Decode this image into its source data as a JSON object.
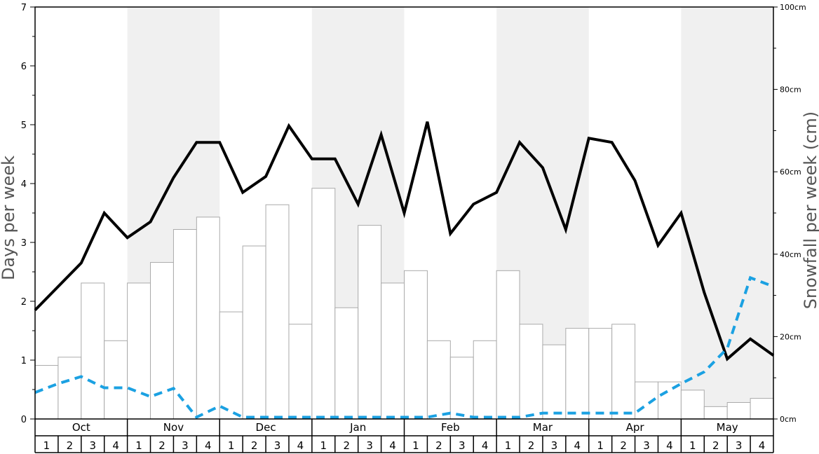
{
  "chart_data": {
    "type": "bar",
    "title": "",
    "y_left": {
      "label": "Days per week",
      "range": [
        0,
        7
      ],
      "ticks": [
        0,
        1,
        2,
        3,
        4,
        5,
        6,
        7
      ]
    },
    "y_right": {
      "label": "Snowfall per week (cm)",
      "range": [
        0,
        100
      ],
      "ticks": [
        "0cm",
        "20cm",
        "40cm",
        "60cm",
        "80cm",
        "100cm"
      ]
    },
    "months": [
      "Oct",
      "Nov",
      "Dec",
      "Jan",
      "Feb",
      "Mar",
      "Apr",
      "May"
    ],
    "week_labels": [
      "1",
      "2",
      "3",
      "4"
    ],
    "shaded_months": [
      "Nov",
      "Jan",
      "Mar",
      "May"
    ],
    "colors": {
      "bars": "#ffffff",
      "bar_edge": "#aaaaaa",
      "solid_line": "#000000",
      "dashed_line": "#1ba1e2",
      "shade": "#f0f0f0"
    },
    "series": [
      {
        "kind": "bar",
        "axis": "right",
        "values": [
          13,
          15,
          33,
          19,
          33,
          38,
          46,
          49,
          26,
          42,
          52,
          23,
          56,
          27,
          47,
          33,
          36,
          19,
          15,
          19,
          36,
          23,
          18,
          22,
          22,
          23,
          9,
          9,
          7,
          3,
          4,
          5
        ]
      },
      {
        "kind": "line",
        "style": "solid",
        "axis": "left",
        "values": [
          1.85,
          2.25,
          2.65,
          3.5,
          3.08,
          3.35,
          4.1,
          4.7,
          4.7,
          3.85,
          4.12,
          4.98,
          4.42,
          4.42,
          3.65,
          4.83,
          3.5,
          5.05,
          3.15,
          3.65,
          3.85,
          4.7,
          4.27,
          3.22,
          4.77,
          4.7,
          4.05,
          2.95,
          3.5,
          2.15,
          1.02,
          1.36,
          1.08
        ]
      },
      {
        "kind": "line",
        "style": "dashed",
        "axis": "left",
        "values": [
          0.45,
          0.6,
          0.72,
          0.53,
          0.53,
          0.38,
          0.52,
          0.03,
          0.22,
          0.03,
          0.03,
          0.03,
          0.03,
          0.03,
          0.03,
          0.03,
          0.03,
          0.03,
          0.1,
          0.03,
          0.03,
          0.03,
          0.1,
          0.1,
          0.1,
          0.1,
          0.1,
          0.38,
          0.6,
          0.8,
          1.2,
          2.4,
          2.25
        ]
      }
    ]
  }
}
